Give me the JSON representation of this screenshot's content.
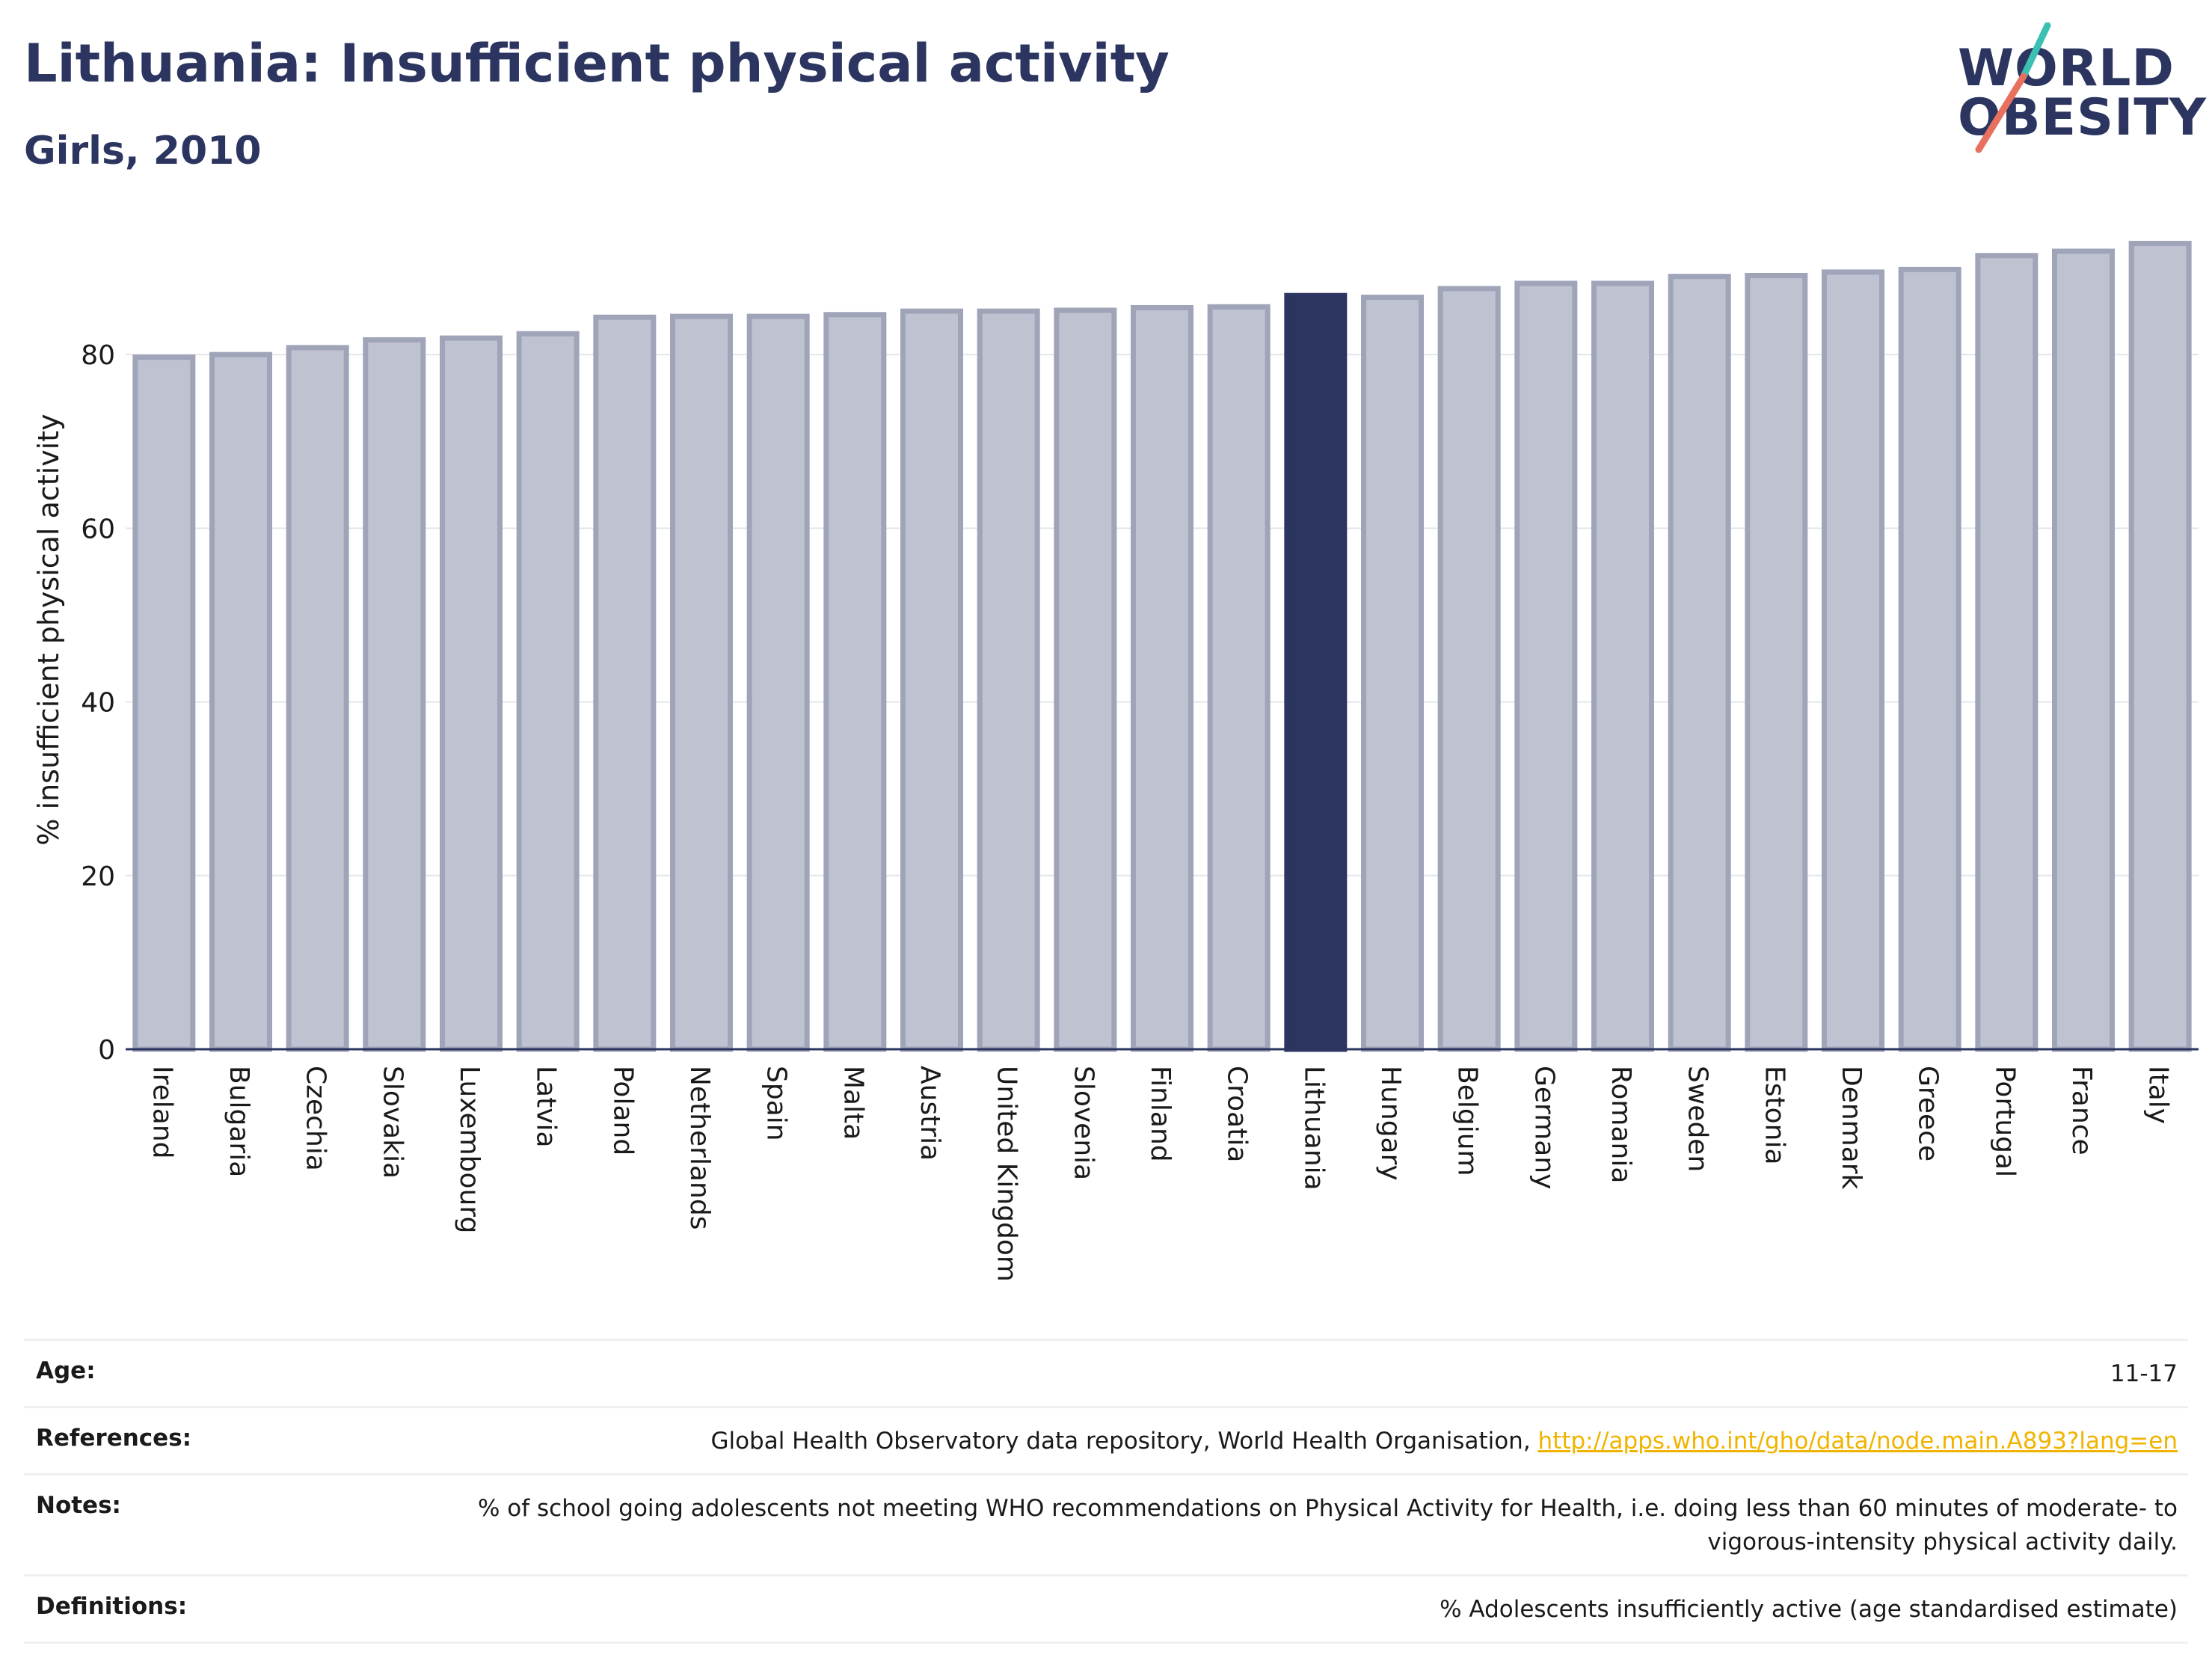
{
  "header": {
    "title": "Lithuania: Insufficient physical activity",
    "subtitle": "Girls, 2010"
  },
  "logo": {
    "line1": "WORLD",
    "line2": "OBESITY"
  },
  "colors": {
    "bar_fill": "#bfc2d0",
    "bar_stroke": "#9fa4b9",
    "highlight": "#2b3560",
    "logo_teal": "#3cc0b4",
    "logo_coral": "#e8705f",
    "link": "#f0b400"
  },
  "chart_data": {
    "type": "bar",
    "title": "Lithuania: Insufficient physical activity",
    "subtitle": "Girls, 2010",
    "xlabel": "",
    "ylabel": "% insufficient physical activity",
    "ylim": [
      0,
      95
    ],
    "yticks": [
      0,
      20,
      40,
      60,
      80
    ],
    "grid": true,
    "highlight": "Lithuania",
    "categories": [
      "Ireland",
      "Bulgaria",
      "Czechia",
      "Slovakia",
      "Luxembourg",
      "Latvia",
      "Poland",
      "Netherlands",
      "Spain",
      "Malta",
      "Austria",
      "United Kingdom",
      "Slovenia",
      "Finland",
      "Croatia",
      "Lithuania",
      "Hungary",
      "Belgium",
      "Germany",
      "Romania",
      "Sweden",
      "Estonia",
      "Denmark",
      "Greece",
      "Portugal",
      "France",
      "Italy"
    ],
    "values": [
      79.7,
      80.0,
      80.8,
      81.7,
      81.9,
      82.4,
      84.3,
      84.4,
      84.4,
      84.6,
      85.0,
      85.0,
      85.1,
      85.4,
      85.5,
      86.8,
      86.6,
      87.6,
      88.2,
      88.2,
      89.0,
      89.1,
      89.5,
      89.8,
      91.4,
      91.9,
      92.8
    ]
  },
  "meta": {
    "age_label": "Age:",
    "age_value": "11-17",
    "references_label": "References:",
    "references_text": "Global Health Observatory data repository, World Health Organisation, ",
    "references_link": "http://apps.who.int/gho/data/node.main.A893?lang=en",
    "notes_label": "Notes:",
    "notes_value": "% of school going adolescents not meeting WHO recommendations on Physical Activity for Health, i.e. doing less than 60 minutes of moderate- to vigorous-intensity physical activity daily.",
    "definitions_label": "Definitions:",
    "definitions_value": "% Adolescents insufficiently active (age standardised estimate)"
  }
}
